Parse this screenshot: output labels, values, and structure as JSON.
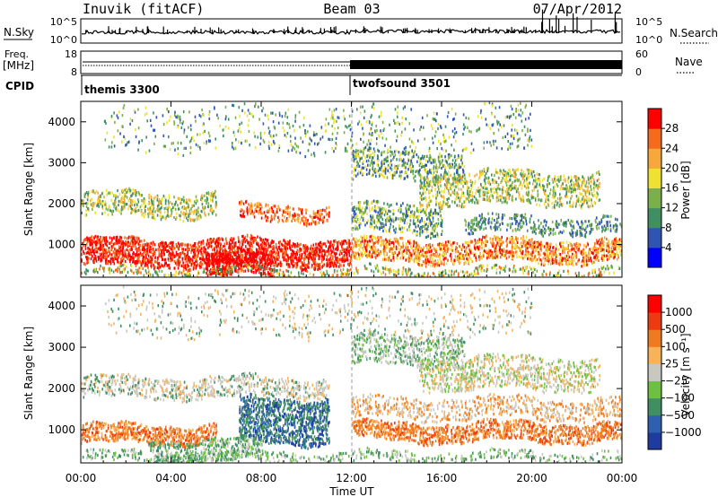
{
  "header": {
    "station": "Inuvik (fitACF)",
    "beam": "Beam 03",
    "date": "07/Apr/2012"
  },
  "strips": {
    "nsky_label": "N.Sky",
    "nsky_ticks": [
      "10^5",
      "10^0"
    ],
    "nsearch_label": "N.Search",
    "nsearch_ticks": [
      "10^5",
      "10^0"
    ],
    "freq_label": "Freq.",
    "freq_unit": "[MHz]",
    "freq_ticks": [
      "18",
      "8"
    ],
    "nave_label": "Nave",
    "nave_ticks": [
      "60",
      "0"
    ],
    "cpid_label": "CPID",
    "cpid_segments": [
      {
        "name": "themis 3300",
        "start_hour": 0
      },
      {
        "name": "twofsound 3501",
        "start_hour": 12
      }
    ]
  },
  "chart_data": [
    {
      "type": "heatmap",
      "panel": "power",
      "ylabel": "Slant Range [km]",
      "yticks": [
        1000,
        2000,
        3000,
        4000
      ],
      "ylim": [
        200,
        4500
      ],
      "x_ticks": [
        "00:00",
        "04:00",
        "08:00",
        "12:00",
        "16:00",
        "20:00",
        "00:00"
      ],
      "xlim_hours": [
        0,
        24
      ],
      "colorbar": {
        "label": "Power [dB]",
        "ticks": [
          "28",
          "24",
          "20",
          "16",
          "12",
          "8",
          "4"
        ],
        "colors": [
          "#0000ff",
          "#2e55b4",
          "#3f8f63",
          "#7ab04a",
          "#f0e030",
          "#f7a83a",
          "#f56a1d",
          "#ff0000"
        ]
      }
    },
    {
      "type": "heatmap",
      "panel": "velocity",
      "ylabel": "Slant Range [km]",
      "yticks": [
        1000,
        2000,
        3000,
        4000
      ],
      "ylim": [
        200,
        4500
      ],
      "x_ticks": [
        "00:00",
        "04:00",
        "08:00",
        "12:00",
        "16:00",
        "20:00",
        "00:00"
      ],
      "xlim_hours": [
        0,
        24
      ],
      "xlabel": "Time UT",
      "colorbar": {
        "label": "Velocity [m s⁻¹]",
        "ticks": [
          "1000",
          "500",
          "100",
          "25",
          "−25",
          "−100",
          "−500",
          "−1000"
        ],
        "colors": [
          "#1e3ca0",
          "#2f5fb0",
          "#3f8f63",
          "#6dc040",
          "#c8c8c0",
          "#f7b25a",
          "#f07a1f",
          "#ee3a10",
          "#ff0000"
        ]
      }
    }
  ]
}
